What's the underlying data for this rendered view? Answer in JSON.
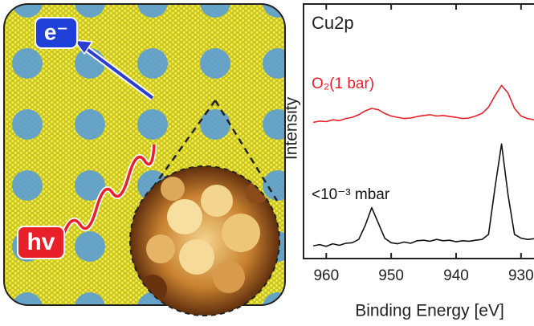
{
  "illustration": {
    "electron_label": "e⁻",
    "photon_label": "hv"
  },
  "chart_data": {
    "type": "line",
    "title": "Cu2p",
    "y_label": "Intensity",
    "x_label": "Binding Energy [eV]",
    "x": [
      962,
      961,
      960,
      959,
      958,
      957,
      956,
      955,
      954,
      953,
      952,
      951,
      950,
      949,
      948,
      947,
      946,
      945,
      944,
      943,
      942,
      941,
      940,
      939,
      938,
      937,
      936,
      935,
      934,
      933,
      932,
      931,
      930,
      929,
      928
    ],
    "series": [
      {
        "name": "O₂(1 bar)",
        "color": "#e8202a",
        "values": [
          5.35,
          5.4,
          5.38,
          5.45,
          5.42,
          5.5,
          5.55,
          5.65,
          5.8,
          5.9,
          5.85,
          5.7,
          5.6,
          5.55,
          5.5,
          5.52,
          5.58,
          5.62,
          5.65,
          5.6,
          5.62,
          5.58,
          5.55,
          5.5,
          5.52,
          5.6,
          5.7,
          5.95,
          6.4,
          6.8,
          6.5,
          5.9,
          5.6,
          5.5,
          5.45
        ]
      },
      {
        "name": "<10⁻³ mbar",
        "color": "#111111",
        "values": [
          0.5,
          0.55,
          0.48,
          0.58,
          0.52,
          0.6,
          0.62,
          0.75,
          1.3,
          2.0,
          1.4,
          0.8,
          0.62,
          0.58,
          0.65,
          0.6,
          0.7,
          0.72,
          0.68,
          0.75,
          0.7,
          0.72,
          0.66,
          0.7,
          0.68,
          0.72,
          0.75,
          0.95,
          2.8,
          4.5,
          2.5,
          0.95,
          0.8,
          0.75,
          0.78
        ]
      }
    ],
    "xlim": [
      963.5,
      928
    ],
    "ylim": [
      0,
      10
    ],
    "xticks": [
      960,
      950,
      940,
      930
    ]
  }
}
